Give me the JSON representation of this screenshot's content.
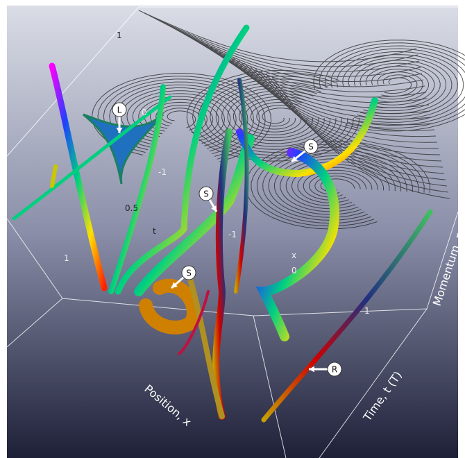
{
  "axes": {
    "position": "Position, x",
    "time": "Time, t (T)",
    "momentum": "Momentum, p"
  },
  "ticks": {
    "p_top": "1",
    "p_mid": "0",
    "p_low": "-1",
    "t_half": "0.5",
    "t_name": "t",
    "t_one": "1",
    "x_neg": "-1",
    "x_name": "x",
    "x_zero": "0",
    "x_one": "1"
  },
  "markers": [
    {
      "label": "L"
    },
    {
      "label": "S"
    },
    {
      "label": "S"
    },
    {
      "label": "S"
    },
    {
      "label": "R"
    }
  ]
}
